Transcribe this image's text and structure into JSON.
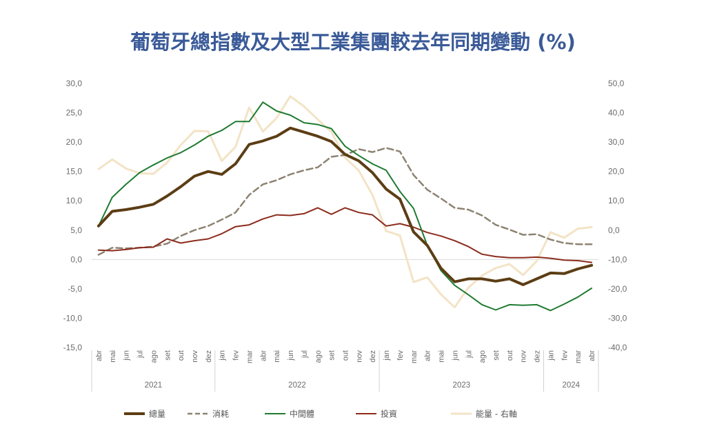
{
  "title": "葡萄牙總指數及大型工業集團較去年同期變動 (%)",
  "colors": {
    "total": "#5c3d14",
    "consumer": "#8c8371",
    "intermediate": "#1e7a30",
    "investment": "#8b2b1c",
    "energy": "#f3e3c6"
  },
  "chart_data": {
    "type": "line",
    "title": "葡萄牙總指數及大型工業集團較去年同期變動 (%)",
    "x": [
      "abr",
      "mai",
      "jun",
      "jul",
      "ago",
      "set",
      "out",
      "nov",
      "dez",
      "jan",
      "fev",
      "mar",
      "abr",
      "mai",
      "jun",
      "jul",
      "ago",
      "set",
      "out",
      "nov",
      "dez",
      "jan",
      "fev",
      "mar",
      "abr",
      "mai",
      "jun",
      "jul",
      "ago",
      "set",
      "out",
      "nov",
      "dez",
      "jan",
      "fev",
      "mar",
      "abr"
    ],
    "year_groups": [
      {
        "label": "2021",
        "start": 0,
        "end": 8
      },
      {
        "label": "2022",
        "start": 9,
        "end": 20
      },
      {
        "label": "2023",
        "start": 21,
        "end": 32
      },
      {
        "label": "2024",
        "start": 33,
        "end": 36
      }
    ],
    "y_left": {
      "min": -15,
      "max": 30,
      "step": 5,
      "ticks": [
        "30,0",
        "25,0",
        "20,0",
        "15,0",
        "10,0",
        "5,0",
        "0,0",
        "-5,0",
        "-10,0",
        "-15,0"
      ]
    },
    "y_right": {
      "min": -40,
      "max": 50,
      "step": 10,
      "ticks": [
        "50,0",
        "40,0",
        "30,0",
        "20,0",
        "10,0",
        "0,0",
        "-10,0",
        "-20,0",
        "-30,0",
        "-40,0"
      ]
    },
    "grid": "zero-line only",
    "legend": "bottom",
    "series": [
      {
        "key": "total",
        "name": "總量",
        "axis": "left",
        "width": 4,
        "dash": "",
        "values": [
          5.7,
          8.2,
          8.5,
          8.9,
          9.4,
          10.8,
          12.4,
          14.2,
          15.0,
          14.5,
          16.3,
          19.6,
          20.2,
          21.0,
          22.4,
          21.7,
          21.0,
          20.1,
          17.9,
          16.8,
          14.8,
          12.0,
          10.3,
          4.7,
          2.4,
          -1.5,
          -3.8,
          -3.3,
          -3.3,
          -3.7,
          -3.3,
          -4.3,
          -3.3,
          -2.3,
          -2.4,
          -1.6,
          -1.0
        ]
      },
      {
        "key": "consumer",
        "name": "消耗",
        "axis": "left",
        "width": 2.5,
        "dash": "9,5",
        "values": [
          0.8,
          2.0,
          1.9,
          2.0,
          2.2,
          2.7,
          4.0,
          5.0,
          5.7,
          6.8,
          8.0,
          11.0,
          12.8,
          13.5,
          14.5,
          15.2,
          15.7,
          17.5,
          17.8,
          18.8,
          18.3,
          19.0,
          18.4,
          14.4,
          11.9,
          10.4,
          8.8,
          8.5,
          7.5,
          5.9,
          5.1,
          4.2,
          4.3,
          3.4,
          2.8,
          2.6,
          2.6
        ]
      },
      {
        "key": "intermediate",
        "name": "中間體",
        "axis": "left",
        "width": 2,
        "dash": "",
        "values": [
          5.7,
          10.6,
          12.8,
          14.8,
          16.1,
          17.3,
          18.2,
          19.5,
          21.0,
          22.0,
          23.5,
          23.5,
          26.8,
          25.3,
          24.6,
          23.3,
          23.0,
          22.3,
          19.3,
          17.7,
          16.3,
          15.2,
          11.6,
          8.7,
          2.4,
          -1.9,
          -4.4,
          -6.0,
          -7.7,
          -8.6,
          -7.7,
          -7.8,
          -7.7,
          -8.7,
          -7.6,
          -6.4,
          -4.9
        ]
      },
      {
        "key": "investment",
        "name": "投資",
        "axis": "left",
        "width": 2,
        "dash": "",
        "values": [
          1.6,
          1.5,
          1.7,
          2.0,
          2.1,
          3.5,
          2.8,
          3.2,
          3.5,
          4.4,
          5.6,
          5.9,
          6.9,
          7.6,
          7.5,
          7.8,
          8.8,
          7.7,
          8.8,
          8.0,
          7.6,
          5.7,
          6.1,
          5.5,
          4.6,
          4.0,
          3.2,
          2.2,
          0.9,
          0.5,
          0.3,
          0.3,
          0.4,
          0.2,
          -0.1,
          -0.2,
          -0.5
        ]
      },
      {
        "key": "energy",
        "name": "能量 - 右軸",
        "axis": "right",
        "width": 3,
        "dash": "",
        "values": [
          20.8,
          24.1,
          21.0,
          19.4,
          19.2,
          23.0,
          29.0,
          33.8,
          33.7,
          23.6,
          28.4,
          41.8,
          33.6,
          38.2,
          45.6,
          42.2,
          37.7,
          33.5,
          24.7,
          20.3,
          12.0,
          -0.3,
          -1.8,
          -17.7,
          -16.1,
          -21.9,
          -26.3,
          -19.6,
          -15.5,
          -12.9,
          -11.6,
          -15.3,
          -10.5,
          -0.7,
          -2.6,
          0.5,
          1.0
        ]
      }
    ]
  }
}
